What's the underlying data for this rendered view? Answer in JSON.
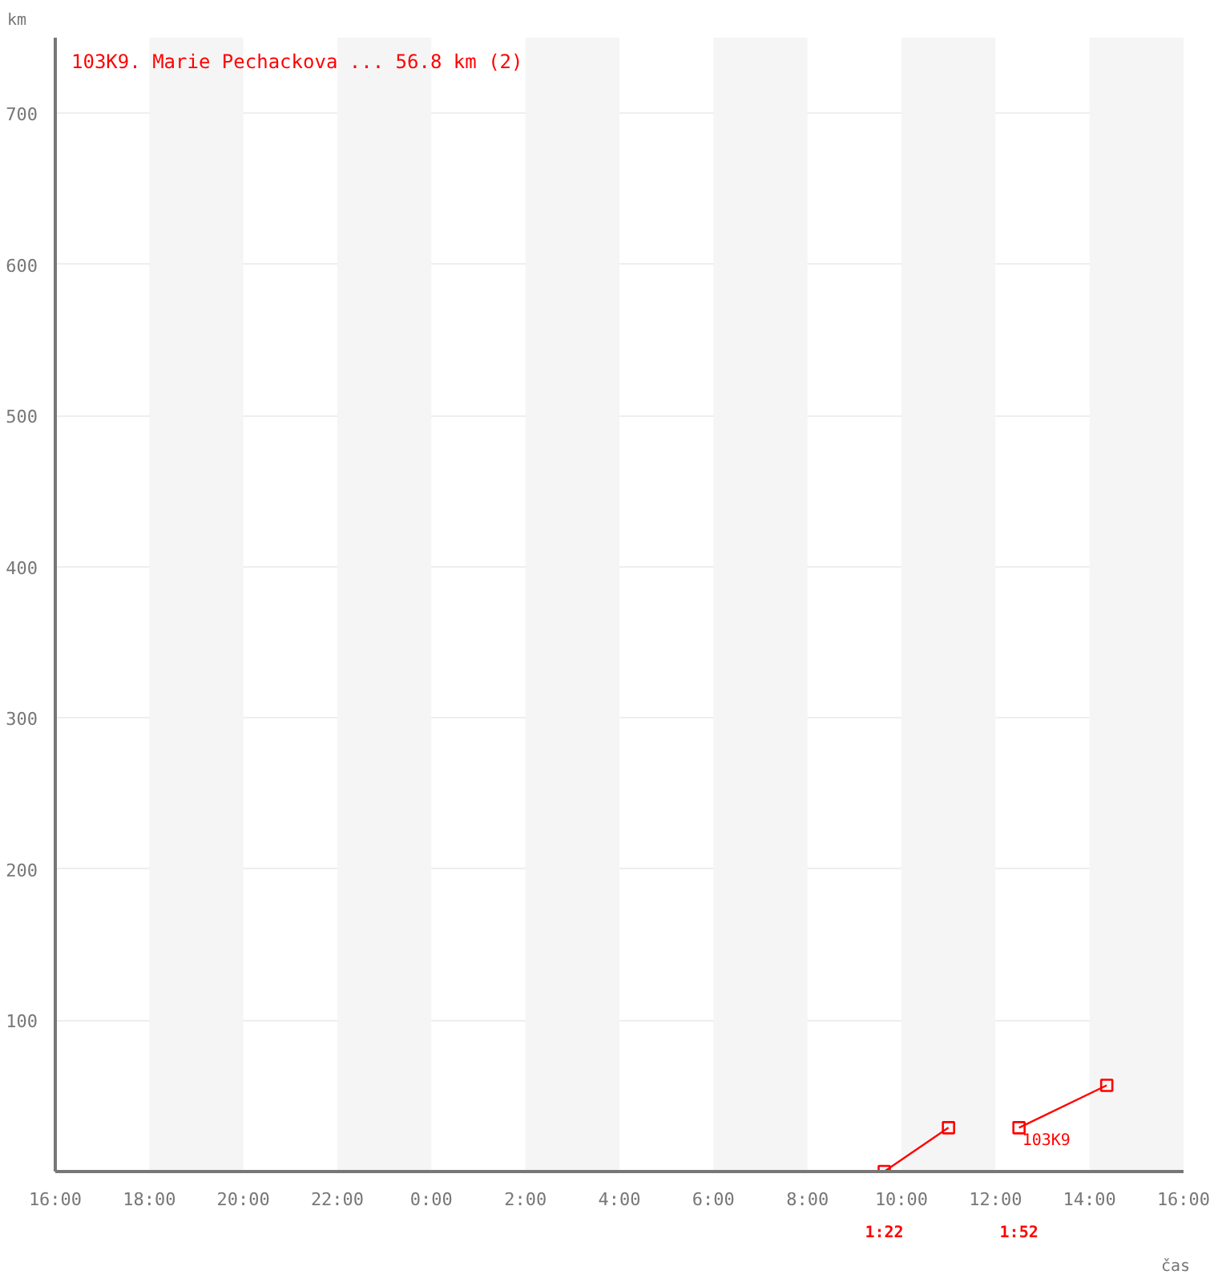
{
  "chart_data": {
    "type": "line",
    "title": "103K9. Marie Pechackova ... 56.8 km (2)",
    "xlabel": "čas",
    "ylabel": "km",
    "series": [
      {
        "color": "#ff0000",
        "x": [
          "2000-01-02T09:38",
          "2000-01-02T11:00"
        ],
        "values": [
          0,
          29
        ]
      },
      {
        "color": "#ff0000",
        "x": [
          "2000-01-02T12:30",
          "2000-01-02T14:22"
        ],
        "values": [
          29,
          57
        ]
      }
    ],
    "marker": "square",
    "line_style": "solid",
    "grid": "y",
    "xlim": [
      "2000-01-01T16:00",
      "2000-01-02T16:00"
    ],
    "ylim": [
      0,
      750
    ],
    "xticks": [
      {
        "value": "2000-01-01T16:00",
        "label": "16:00"
      },
      {
        "value": "2000-01-01T18:00",
        "label": "18:00"
      },
      {
        "value": "2000-01-01T20:00",
        "label": "20:00"
      },
      {
        "value": "2000-01-01T22:00",
        "label": "22:00"
      },
      {
        "value": "2000-01-02T00:00",
        "label": "0:00"
      },
      {
        "value": "2000-01-02T02:00",
        "label": "2:00"
      },
      {
        "value": "2000-01-02T04:00",
        "label": "4:00"
      },
      {
        "value": "2000-01-02T06:00",
        "label": "6:00"
      },
      {
        "value": "2000-01-02T08:00",
        "label": "8:00"
      },
      {
        "value": "2000-01-02T10:00",
        "label": "10:00"
      },
      {
        "value": "2000-01-02T12:00",
        "label": "12:00"
      },
      {
        "value": "2000-01-02T14:00",
        "label": "14:00"
      },
      {
        "value": "2000-01-02T16:00",
        "label": "16:00"
      }
    ],
    "yticks": [
      100,
      200,
      300,
      400,
      500,
      600,
      700
    ],
    "bands": [
      {
        "axis": "x",
        "from": "2000-01-01T18:00",
        "to": "2000-01-01T20:00",
        "color": "#f5f5f5"
      },
      {
        "axis": "x",
        "from": "2000-01-01T22:00",
        "to": "2000-01-02T00:00",
        "color": "#f5f5f5"
      },
      {
        "axis": "x",
        "from": "2000-01-02T02:00",
        "to": "2000-01-02T04:00",
        "color": "#f5f5f5"
      },
      {
        "axis": "x",
        "from": "2000-01-02T06:00",
        "to": "2000-01-02T08:00",
        "color": "#f5f5f5"
      },
      {
        "axis": "x",
        "from": "2000-01-02T10:00",
        "to": "2000-01-02T12:00",
        "color": "#f5f5f5"
      },
      {
        "axis": "x",
        "from": "2000-01-02T14:00",
        "to": "2000-01-02T16:00",
        "color": "#f5f5f5"
      }
    ],
    "annotations": [
      "1:22",
      "1:52",
      {
        "text": "103K9",
        "x": "2000-01-02T12:30",
        "y": 29
      }
    ]
  }
}
